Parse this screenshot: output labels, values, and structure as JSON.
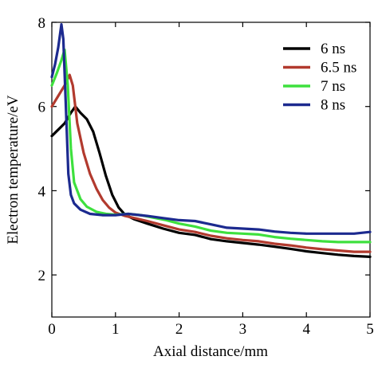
{
  "chart_data": {
    "type": "line",
    "title": "",
    "xlabel": "Axial distance/mm",
    "ylabel": "Electron temperature/eV",
    "xlim": [
      0,
      5
    ],
    "ylim": [
      1,
      8
    ],
    "x_ticks": [
      0,
      1,
      2,
      3,
      4,
      5
    ],
    "y_ticks": [
      2,
      4,
      6,
      8
    ],
    "x_tick_labels": [
      "0",
      "1",
      "2",
      "3",
      "4",
      "5"
    ],
    "y_tick_labels": [
      "2",
      "4",
      "6",
      "8"
    ],
    "grid": false,
    "legend_position": "top-right",
    "series": [
      {
        "name": "6 ns",
        "color": "#000000",
        "points": [
          [
            0,
            5.3
          ],
          [
            0.1,
            5.45
          ],
          [
            0.2,
            5.6
          ],
          [
            0.3,
            5.85
          ],
          [
            0.37,
            6.0
          ],
          [
            0.45,
            5.85
          ],
          [
            0.55,
            5.7
          ],
          [
            0.65,
            5.4
          ],
          [
            0.75,
            4.9
          ],
          [
            0.85,
            4.35
          ],
          [
            0.95,
            3.9
          ],
          [
            1.05,
            3.6
          ],
          [
            1.15,
            3.43
          ],
          [
            1.3,
            3.32
          ],
          [
            1.5,
            3.22
          ],
          [
            1.75,
            3.1
          ],
          [
            2.0,
            3.0
          ],
          [
            2.25,
            2.95
          ],
          [
            2.5,
            2.85
          ],
          [
            2.75,
            2.8
          ],
          [
            3.0,
            2.76
          ],
          [
            3.25,
            2.72
          ],
          [
            3.5,
            2.67
          ],
          [
            3.75,
            2.62
          ],
          [
            4.0,
            2.56
          ],
          [
            4.25,
            2.52
          ],
          [
            4.5,
            2.48
          ],
          [
            4.75,
            2.45
          ],
          [
            5.0,
            2.43
          ]
        ]
      },
      {
        "name": "6.5 ns",
        "color": "#b23a2e",
        "points": [
          [
            0,
            6.0
          ],
          [
            0.1,
            6.25
          ],
          [
            0.2,
            6.5
          ],
          [
            0.28,
            6.75
          ],
          [
            0.33,
            6.5
          ],
          [
            0.4,
            5.6
          ],
          [
            0.5,
            4.9
          ],
          [
            0.6,
            4.4
          ],
          [
            0.7,
            4.05
          ],
          [
            0.8,
            3.78
          ],
          [
            0.9,
            3.6
          ],
          [
            1.0,
            3.48
          ],
          [
            1.15,
            3.4
          ],
          [
            1.3,
            3.35
          ],
          [
            1.5,
            3.28
          ],
          [
            1.75,
            3.18
          ],
          [
            2.0,
            3.08
          ],
          [
            2.25,
            3.02
          ],
          [
            2.5,
            2.93
          ],
          [
            2.75,
            2.87
          ],
          [
            3.0,
            2.83
          ],
          [
            3.25,
            2.8
          ],
          [
            3.5,
            2.74
          ],
          [
            3.75,
            2.7
          ],
          [
            4.0,
            2.65
          ],
          [
            4.25,
            2.61
          ],
          [
            4.5,
            2.58
          ],
          [
            4.75,
            2.55
          ],
          [
            5.0,
            2.55
          ]
        ]
      },
      {
        "name": "7 ns",
        "color": "#3ee03e",
        "points": [
          [
            0,
            6.5
          ],
          [
            0.08,
            6.8
          ],
          [
            0.15,
            7.1
          ],
          [
            0.2,
            7.35
          ],
          [
            0.25,
            6.5
          ],
          [
            0.3,
            5.0
          ],
          [
            0.35,
            4.2
          ],
          [
            0.45,
            3.8
          ],
          [
            0.55,
            3.62
          ],
          [
            0.7,
            3.5
          ],
          [
            0.85,
            3.45
          ],
          [
            1.0,
            3.43
          ],
          [
            1.2,
            3.45
          ],
          [
            1.4,
            3.42
          ],
          [
            1.6,
            3.36
          ],
          [
            1.8,
            3.3
          ],
          [
            2.0,
            3.22
          ],
          [
            2.25,
            3.15
          ],
          [
            2.5,
            3.05
          ],
          [
            2.75,
            3.0
          ],
          [
            3.0,
            2.98
          ],
          [
            3.25,
            2.96
          ],
          [
            3.5,
            2.9
          ],
          [
            3.75,
            2.86
          ],
          [
            4.0,
            2.83
          ],
          [
            4.25,
            2.8
          ],
          [
            4.5,
            2.78
          ],
          [
            4.75,
            2.78
          ],
          [
            5.0,
            2.78
          ]
        ]
      },
      {
        "name": "8 ns",
        "color": "#1c2a8f",
        "points": [
          [
            0,
            6.7
          ],
          [
            0.05,
            7.0
          ],
          [
            0.1,
            7.4
          ],
          [
            0.15,
            7.95
          ],
          [
            0.18,
            7.6
          ],
          [
            0.22,
            6.0
          ],
          [
            0.26,
            4.4
          ],
          [
            0.3,
            3.9
          ],
          [
            0.35,
            3.7
          ],
          [
            0.45,
            3.55
          ],
          [
            0.6,
            3.45
          ],
          [
            0.8,
            3.42
          ],
          [
            1.0,
            3.42
          ],
          [
            1.2,
            3.45
          ],
          [
            1.5,
            3.4
          ],
          [
            1.75,
            3.35
          ],
          [
            2.0,
            3.3
          ],
          [
            2.25,
            3.28
          ],
          [
            2.5,
            3.2
          ],
          [
            2.75,
            3.12
          ],
          [
            3.0,
            3.1
          ],
          [
            3.25,
            3.08
          ],
          [
            3.5,
            3.03
          ],
          [
            3.75,
            3.0
          ],
          [
            4.0,
            2.98
          ],
          [
            4.25,
            2.98
          ],
          [
            4.5,
            2.98
          ],
          [
            4.75,
            2.98
          ],
          [
            5.0,
            3.02
          ]
        ]
      }
    ]
  }
}
